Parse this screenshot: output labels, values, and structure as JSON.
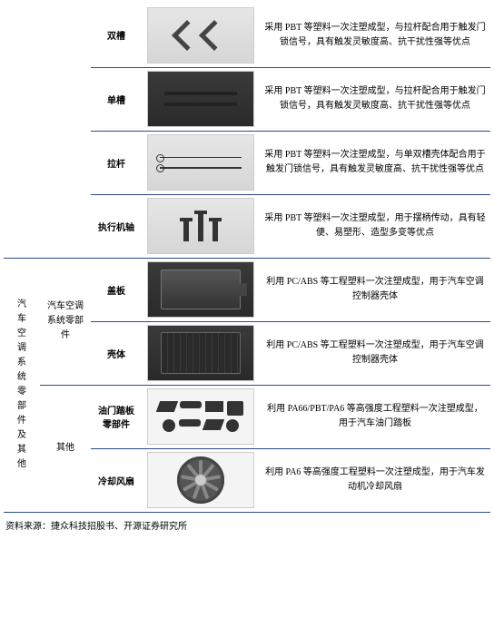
{
  "rows": [
    {
      "name": "双槽",
      "desc": "采用 PBT 等塑料一次注塑成型，与拉杆配合用于触发门锁信号，具有触发灵敏度高、抗干扰性强等优点",
      "img": "chev2",
      "bg": "bg-light"
    },
    {
      "name": "单槽",
      "desc": "采用 PBT 等塑料一次注塑成型，与拉杆配合用于触发门锁信号，具有触发灵敏度高、抗干扰性强等优点",
      "img": "bars",
      "bg": "bg-dark"
    },
    {
      "name": "拉杆",
      "desc": "采用 PBT 等塑料一次注塑成型，与单双槽壳体配合用于触发门锁信号，具有触发灵敏度高、抗干扰性强等优点",
      "img": "rods",
      "bg": "bg-light"
    },
    {
      "name": "执行机轴",
      "desc": "采用 PBT 等塑料一次注塑成型，用于摆柄传动，具有轻便、易塑形、造型多变等优点",
      "img": "shafts",
      "bg": "bg-light"
    },
    {
      "name": "盖板",
      "desc": "利用 PC/ABS 等工程塑料一次注塑成型，用于汽车空调控制器壳体",
      "img": "panel",
      "bg": "bg-dark"
    },
    {
      "name": "壳体",
      "desc": "利用 PC/ABS 等工程塑料一次注塑成型，用于汽车空调控制器壳体",
      "img": "ribbed",
      "bg": "bg-dark"
    },
    {
      "name": "油门踏板零部件",
      "desc": "利用 PA66/PBT/PA6 等高强度工程塑料一次注塑成型，用于汽车油门踏板",
      "img": "misc",
      "bg": "bg-white"
    },
    {
      "name": "冷却风扇",
      "desc": "利用 PA6 等高强度工程塑料一次注塑成型，用于汽车发动机冷却风扇",
      "img": "fan",
      "bg": "bg-white"
    }
  ],
  "group_outer": {
    "label": "汽车空调系统零部件及其他",
    "span": 4
  },
  "group_inner": [
    {
      "label": "汽车空调系统零部件",
      "span": 2,
      "start": 4
    },
    {
      "label": "其他",
      "span": 2,
      "start": 6
    }
  ],
  "source": "资料来源：捷众科技招股书、开源证券研究所"
}
